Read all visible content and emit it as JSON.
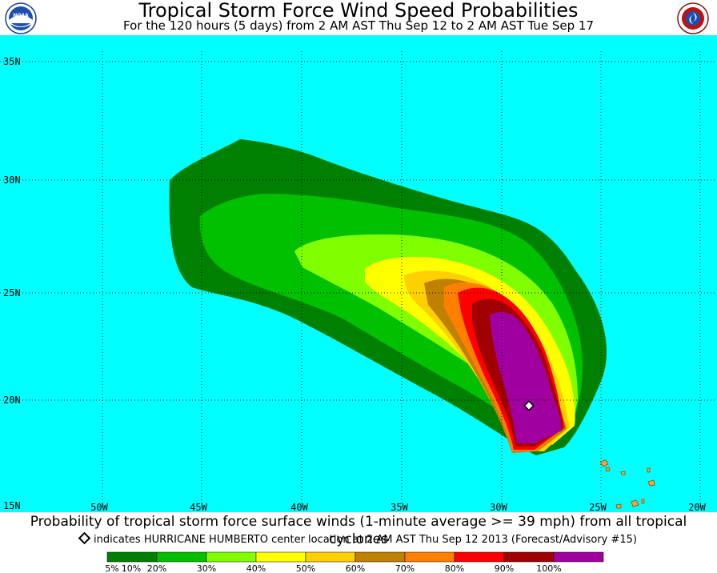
{
  "header": {
    "title": "Tropical Storm Force Wind Speed Probabilities",
    "subtitle": "For the 120 hours (5 days) from 2 AM AST Thu Sep 12 to 2 AM AST Tue Sep 17",
    "left_logo_icon": "noaa-logo-icon",
    "right_logo_icon": "national-weather-service-logo-icon"
  },
  "map": {
    "ocean_color": "#00ffff",
    "latitude_labels": [
      "35N",
      "30N",
      "25N",
      "20N",
      "15N"
    ],
    "longitude_labels": [
      "50W",
      "45W",
      "40W",
      "35W",
      "30W",
      "25W",
      "20W"
    ],
    "center_marker": {
      "label": "HURRICANE HUMBERTO center",
      "icon": "storm-center-diamond-icon"
    },
    "island_color": "#ffa040"
  },
  "footer": {
    "description": "Probability of tropical storm force surface winds (1-minute average >= 39 mph) from all tropical cyclones",
    "marker_note": "indicates HURRICANE HUMBERTO center location at 2 AM AST Thu Sep 12 2013 (Forecast/Advisory #15)"
  },
  "legend": {
    "bins": [
      {
        "color": "#008000"
      },
      {
        "color": "#00c000"
      },
      {
        "color": "#80ff00"
      },
      {
        "color": "#ffff00"
      },
      {
        "color": "#ffd000"
      },
      {
        "color": "#c08000"
      },
      {
        "color": "#ff8000"
      },
      {
        "color": "#ff0000"
      },
      {
        "color": "#a00000"
      },
      {
        "color": "#a000a0"
      }
    ],
    "labels": [
      "5%",
      "10%",
      "20%",
      "30%",
      "40%",
      "50%",
      "60%",
      "70%",
      "80%",
      "90%",
      "100%"
    ]
  }
}
